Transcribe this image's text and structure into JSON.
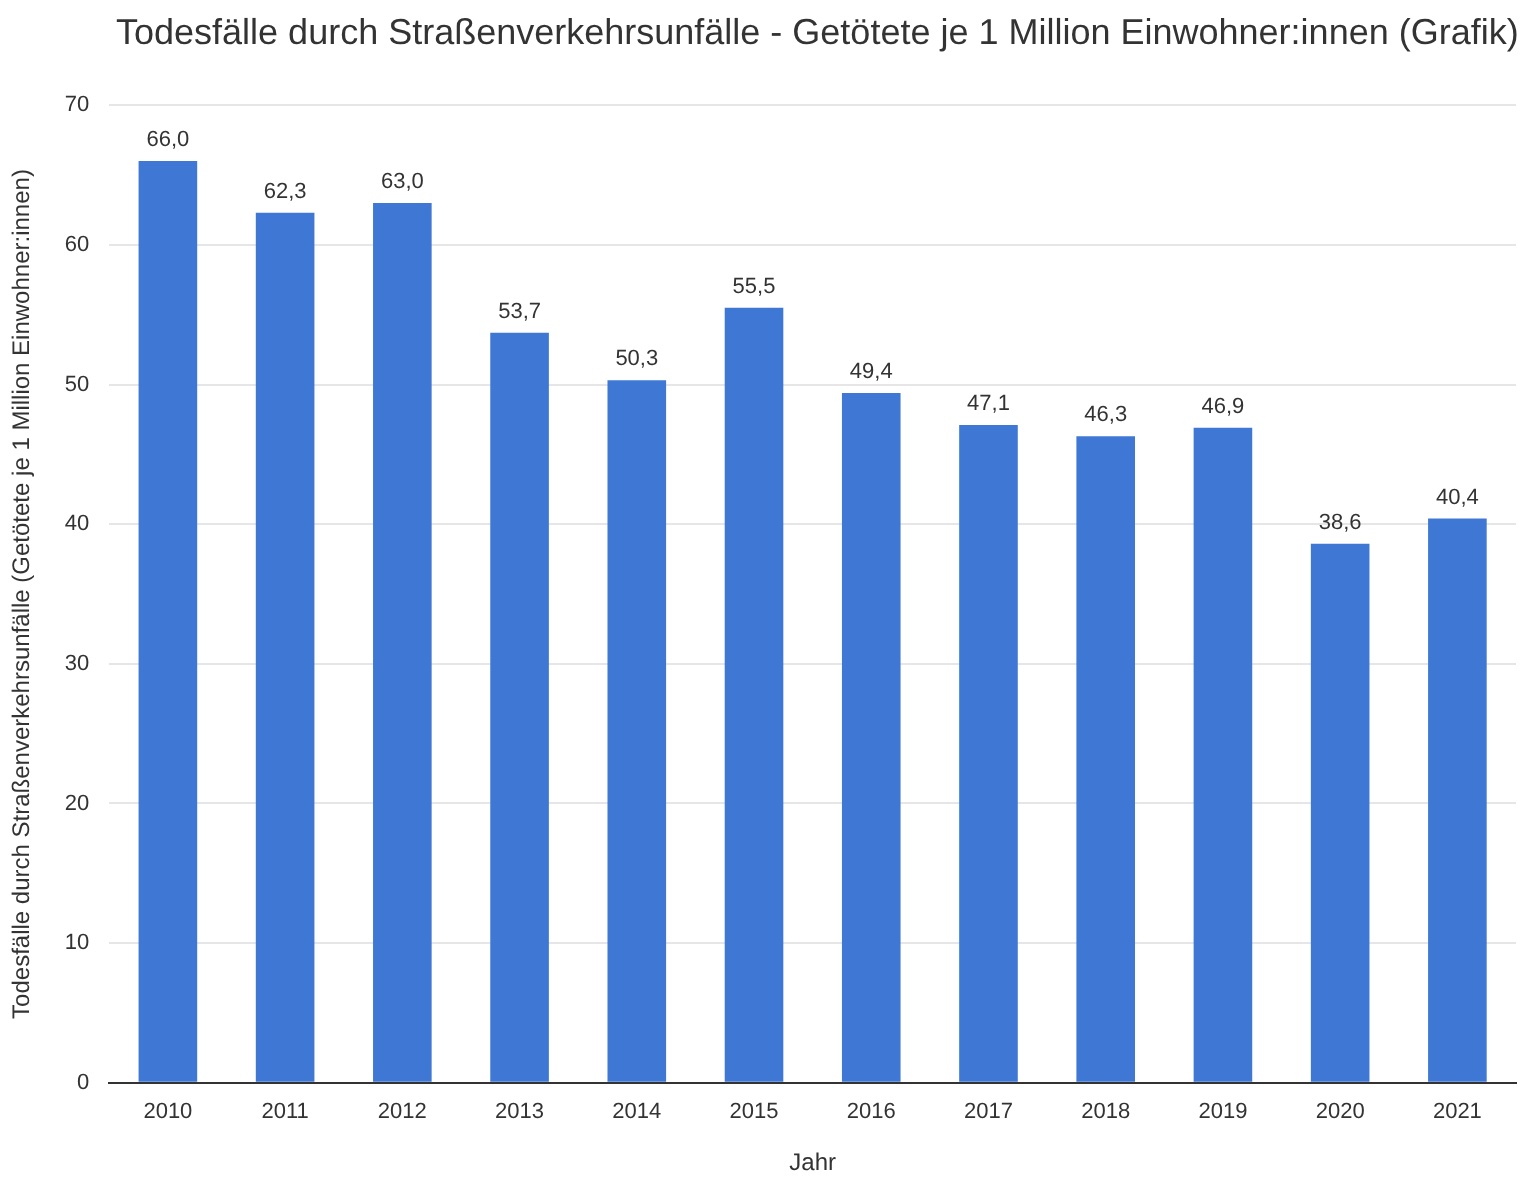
{
  "chart_data": {
    "type": "bar",
    "title": "Todesfälle durch Straßenverkehrsunfälle - Getötete je 1 Million Einwohner:innen (Grafik)",
    "xlabel": "Jahr",
    "ylabel": "Todesfälle durch Straßenverkehrsunfälle (Getötete je 1 Million Einwohner:innen)",
    "categories": [
      "2010",
      "2011",
      "2012",
      "2013",
      "2014",
      "2015",
      "2016",
      "2017",
      "2018",
      "2019",
      "2020",
      "2021"
    ],
    "values": [
      66.0,
      62.3,
      63.0,
      53.7,
      50.3,
      55.5,
      49.4,
      47.1,
      46.3,
      46.9,
      38.6,
      40.4
    ],
    "value_labels": [
      "66,0",
      "62,3",
      "63,0",
      "53,7",
      "50,3",
      "55,5",
      "49,4",
      "47,1",
      "46,3",
      "46,9",
      "38,6",
      "40,4"
    ],
    "color": "#3f78d4",
    "ylim": [
      0,
      70
    ],
    "yticks": [
      0,
      10,
      20,
      30,
      40,
      50,
      60,
      70
    ],
    "grid": "y",
    "legend": false
  }
}
